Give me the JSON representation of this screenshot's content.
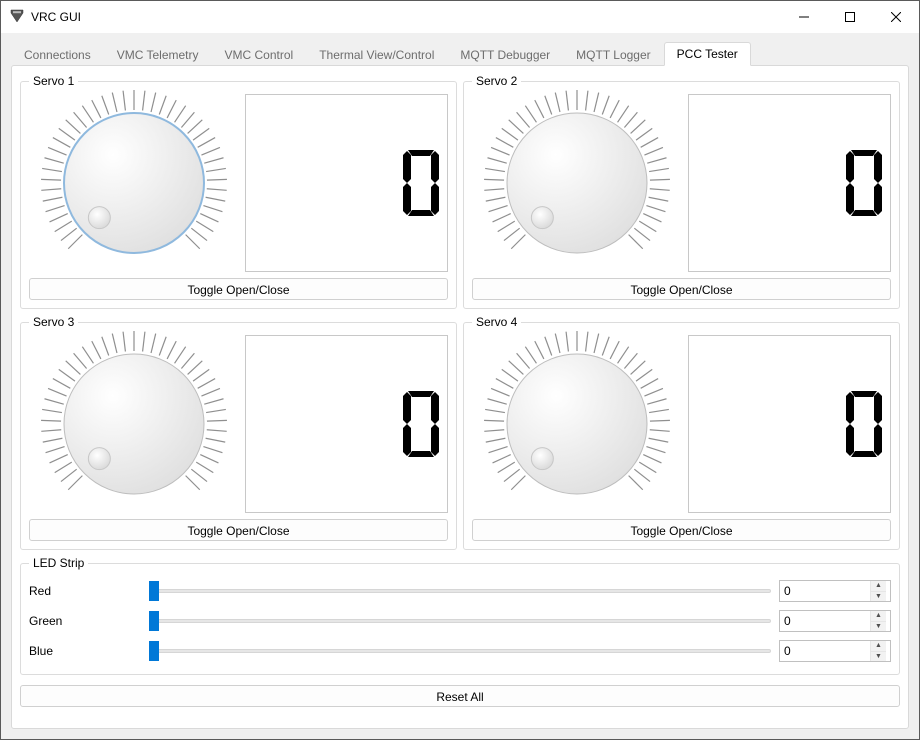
{
  "window": {
    "title": "VRC GUI"
  },
  "tabs": [
    {
      "label": "Connections",
      "active": false
    },
    {
      "label": "VMC Telemetry",
      "active": false
    },
    {
      "label": "VMC Control",
      "active": false
    },
    {
      "label": "Thermal View/Control",
      "active": false
    },
    {
      "label": "MQTT Debugger",
      "active": false
    },
    {
      "label": "MQTT Logger",
      "active": false
    },
    {
      "label": "PCC Tester",
      "active": true
    }
  ],
  "servos": [
    {
      "title": "Servo 1",
      "value": 0,
      "toggle_label": "Toggle Open/Close",
      "highlight": true
    },
    {
      "title": "Servo 2",
      "value": 0,
      "toggle_label": "Toggle Open/Close",
      "highlight": false
    },
    {
      "title": "Servo 3",
      "value": 0,
      "toggle_label": "Toggle Open/Close",
      "highlight": false
    },
    {
      "title": "Servo 4",
      "value": 0,
      "toggle_label": "Toggle Open/Close",
      "highlight": false
    }
  ],
  "led": {
    "title": "LED Strip",
    "channels": [
      {
        "label": "Red",
        "value": 0,
        "min": 0,
        "max": 255
      },
      {
        "label": "Green",
        "value": 0,
        "min": 0,
        "max": 255
      },
      {
        "label": "Blue",
        "value": 0,
        "min": 0,
        "max": 255
      }
    ],
    "slider_thumb_color": "#0078d7"
  },
  "reset_label": "Reset All",
  "colors": {
    "chrome_border": "#5a5a5a",
    "tab_inactive_text": "#6d6d6d",
    "group_border": "#dcdcdc",
    "lcd_digit": "#000000",
    "dial_face_light": "#ffffff",
    "dial_face_dark": "#e2e2e2",
    "dial_active_ring": "#8fb9de",
    "tick_color": "#8f8f8f"
  }
}
